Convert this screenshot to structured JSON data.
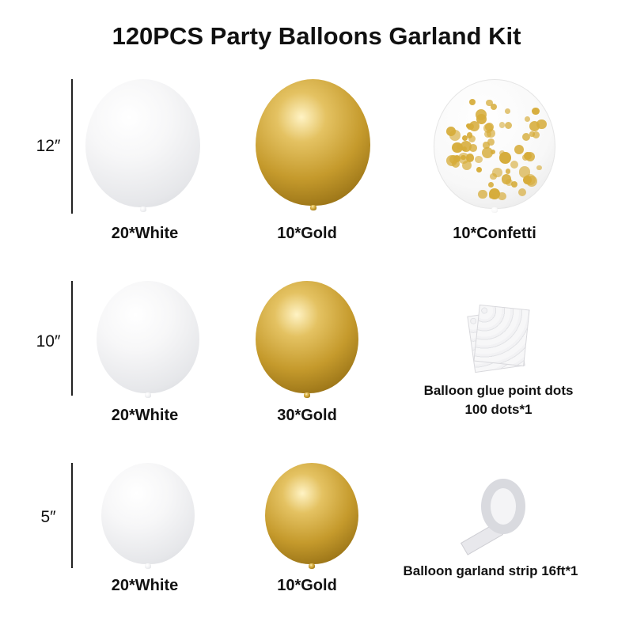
{
  "title": "120PCS Party Balloons Garland Kit",
  "sizes": [
    "12″",
    "10″",
    "5″"
  ],
  "rows": [
    {
      "items": [
        {
          "label": "20*White",
          "color": "white"
        },
        {
          "label": "10*Gold",
          "color": "gold"
        },
        {
          "label": "10*Confetti",
          "color": "confetti"
        }
      ]
    },
    {
      "items": [
        {
          "label": "20*White",
          "color": "white"
        },
        {
          "label": "30*Gold",
          "color": "gold"
        }
      ],
      "accessory": {
        "line1": "Balloon glue point dots",
        "line2": "100 dots*1",
        "icon": "glue-dots-sheet"
      }
    },
    {
      "items": [
        {
          "label": "20*White",
          "color": "white"
        },
        {
          "label": "10*Gold",
          "color": "gold"
        }
      ],
      "accessory": {
        "line1": "Balloon garland strip 16ft*1",
        "icon": "garland-strip-roll"
      }
    }
  ],
  "colors": {
    "gold": "#c59a2c",
    "white": "#f4f4f6",
    "text": "#111111"
  }
}
